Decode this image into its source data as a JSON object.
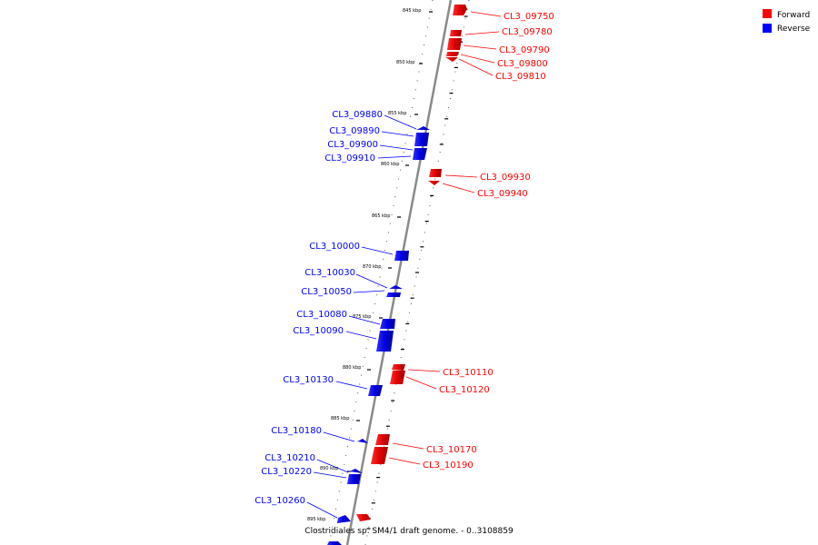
{
  "legend": [
    {
      "label": "Forward",
      "color": "#ff0000"
    },
    {
      "label": "Reverse",
      "color": "#0000ff"
    }
  ],
  "caption": "Clostridiales sp. SM4/1 draft genome. - 0..3108859",
  "kbp_ticks": [
    "845 kbp",
    "850 kbp",
    "855 kbp",
    "860 kbp",
    "865 kbp",
    "870 kbp",
    "875 kbp",
    "880 kbp",
    "885 kbp",
    "890 kbp",
    "895 kbp"
  ],
  "forward_genes": [
    "CL3_09750",
    "CL3_09780",
    "CL3_09790",
    "CL3_09800",
    "CL3_09810",
    "CL3_09930",
    "CL3_09940",
    "CL3_10110",
    "CL3_10120",
    "CL3_10170",
    "CL3_10190"
  ],
  "reverse_genes": [
    "CL3_09880",
    "CL3_09890",
    "CL3_09900",
    "CL3_09910",
    "CL3_10000",
    "CL3_10030",
    "CL3_10050",
    "CL3_10080",
    "CL3_10090",
    "CL3_10130",
    "CL3_10180",
    "CL3_10210",
    "CL3_10220",
    "CL3_10260"
  ],
  "colors": {
    "forward": "#ff0000",
    "reverse": "#0000ff",
    "backbone": "#8a8a8a"
  }
}
